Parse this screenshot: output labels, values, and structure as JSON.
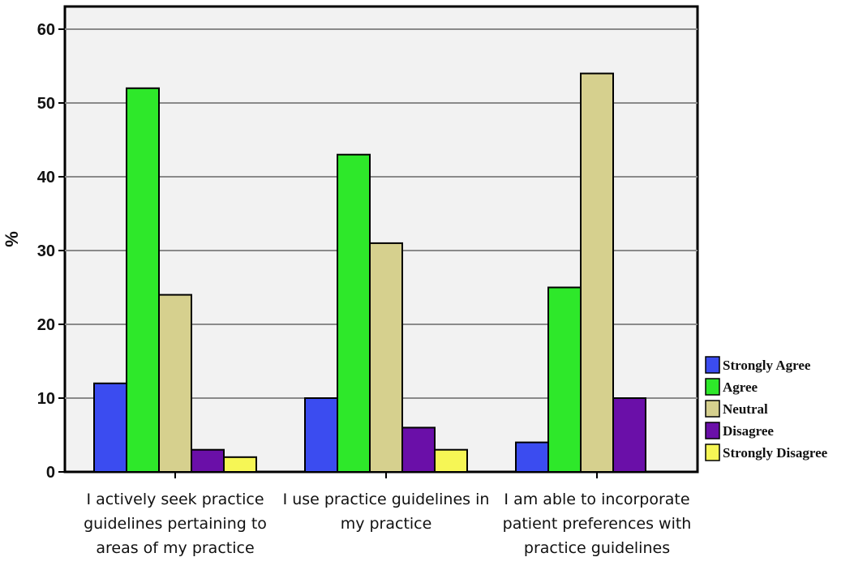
{
  "chart_data": {
    "type": "bar",
    "title": "",
    "xlabel": "",
    "ylabel": "%",
    "ylim": [
      0,
      60
    ],
    "yticks": [
      0,
      10,
      20,
      30,
      40,
      50,
      60
    ],
    "grid": true,
    "legend_position": "right",
    "categories": [
      [
        "I actively seek practice",
        "guidelines pertaining to",
        "areas of my practice"
      ],
      [
        "I use practice guidelines in",
        "my practice"
      ],
      [
        "I am able to incorporate",
        "patient preferences with",
        "practice guidelines"
      ]
    ],
    "series": [
      {
        "name": "Strongly Agree",
        "color": "#3b4cf0",
        "values": [
          12,
          10,
          4
        ]
      },
      {
        "name": "Agree",
        "color": "#2ee82a",
        "values": [
          52,
          43,
          25
        ]
      },
      {
        "name": "Neutral",
        "color": "#d6d08e",
        "values": [
          24,
          31,
          54
        ]
      },
      {
        "name": "Disagree",
        "color": "#6a0fa8",
        "values": [
          3,
          6,
          10
        ]
      },
      {
        "name": "Strongly Disagree",
        "color": "#f6f655",
        "values": [
          2,
          3,
          0
        ]
      }
    ]
  }
}
